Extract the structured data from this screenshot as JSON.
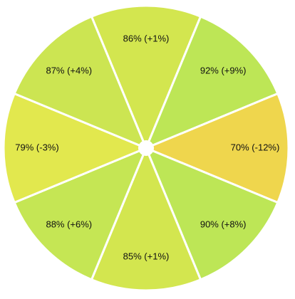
{
  "chart_data": {
    "type": "wheel",
    "values": [
      86,
      92,
      70,
      90,
      85,
      88,
      79,
      87
    ],
    "changes": [
      1,
      9,
      -12,
      8,
      1,
      6,
      -3,
      4
    ],
    "value_labels": [
      "86% (+1%)",
      "92% (+9%)",
      "70% (-12%)",
      "90% (+8%)",
      "85% (+1%)",
      "88% (+6%)",
      "79% (-3%)",
      "87% (+4%)"
    ],
    "colors": [
      "#d3e64f",
      "#bde656",
      "#efd64d",
      "#bde656",
      "#d3e64f",
      "#c5e654",
      "#e2e84e",
      "#cce552"
    ]
  }
}
